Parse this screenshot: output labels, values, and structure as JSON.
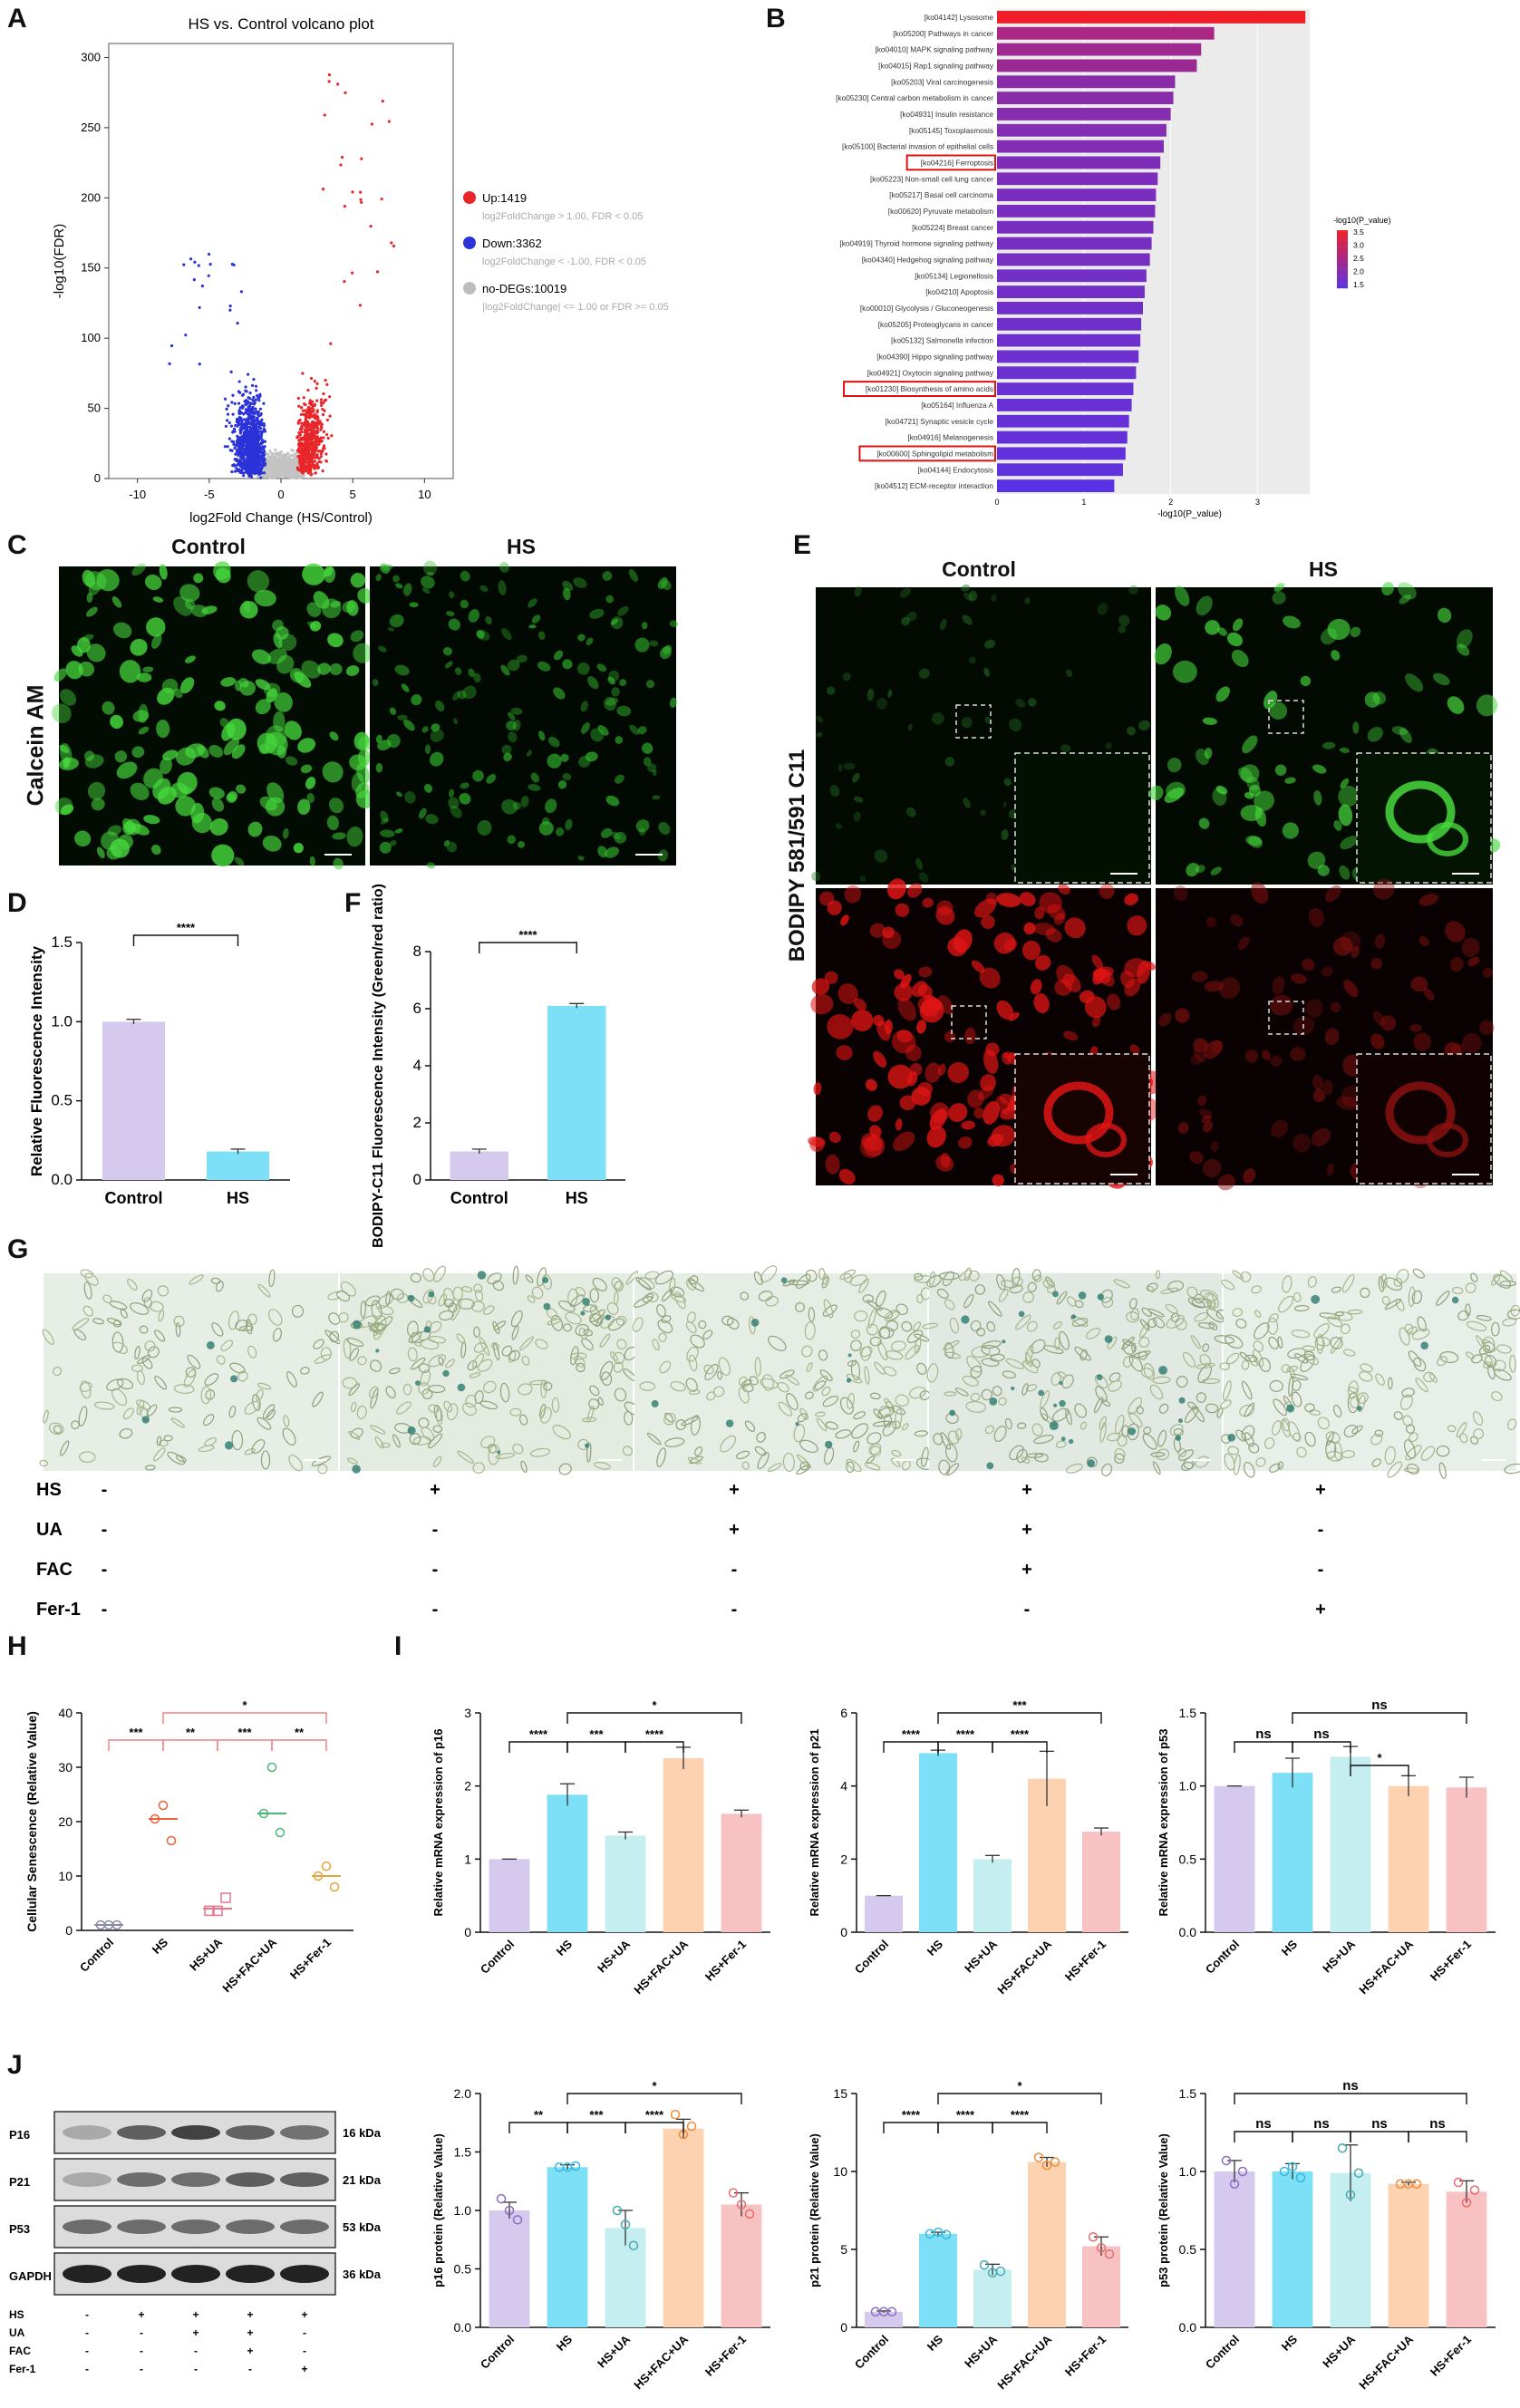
{
  "panel_letters": [
    "A",
    "B",
    "C",
    "D",
    "E",
    "F",
    "G",
    "H",
    "I",
    "J"
  ],
  "colors": {
    "up": "#e8262a",
    "down": "#2b32d8",
    "nodeg": "#c3c3c3",
    "lavender": "#d6c9ee",
    "cyan": "#7ee0f7",
    "teal": "#c4eef0",
    "peach": "#fdd2b1",
    "pink": "#f9c2c2",
    "fluor_green": "#46d83c",
    "fluor_red": "#e01414"
  },
  "volcano": {
    "title": "HS vs. Control volcano plot",
    "xlabel": "log2Fold Change (HS/Control)",
    "ylabel": "-log10(FDR)",
    "legend": [
      {
        "label": "Up:1419",
        "desc": "log2FoldChange > 1.00, FDR < 0.05",
        "color": "#e8262a"
      },
      {
        "label": "Down:3362",
        "desc": "log2FoldChange < -1.00, FDR < 0.05",
        "color": "#2b32d8"
      },
      {
        "label": "no-DEGs:10019",
        "desc": "|log2FoldChange| <= 1.00 or FDR >= 0.05",
        "color": "#bdbdbd"
      }
    ]
  },
  "chart_data": [
    {
      "type": "scatter",
      "id": "A",
      "title": "HS vs. Control volcano plot",
      "xlabel": "log2Fold Change (HS/Control)",
      "ylabel": "-log10(FDR)",
      "xlim": [
        -12,
        12
      ],
      "ylim": [
        0,
        310
      ],
      "xticks": [
        -10,
        -5,
        0,
        5,
        10
      ],
      "yticks": [
        0,
        50,
        100,
        150,
        200,
        250,
        300
      ],
      "series": [
        {
          "name": "Up:1419",
          "count": 1419
        },
        {
          "name": "Down:3362",
          "count": 3362
        },
        {
          "name": "no-DEGs:10019",
          "count": 10019
        }
      ]
    },
    {
      "type": "bar",
      "id": "B",
      "orientation": "horizontal",
      "xlabel": "-log10(P_value)",
      "xlim": [
        0,
        3.6
      ],
      "xticks": [
        0,
        1,
        2,
        3
      ],
      "legend_title": "-log10(P_value)",
      "legend_ticks": [
        "3.5",
        "3.0",
        "2.5",
        "2.0",
        "1.5"
      ],
      "categories": [
        "[ko04142] Lysosome",
        "[ko05200] Pathways in cancer",
        "[ko04010] MAPK signaling pathway",
        "[ko04015] Rap1 signaling pathway",
        "[ko05203] Viral carcinogenesis",
        "[ko05230] Central carbon metabolism in cancer",
        "[ko04931] Insulin resistance",
        "[ko05145] Toxoplasmosis",
        "[ko05100] Bacterial invasion of epithelial cells",
        "[ko04216] Ferroptosis",
        "[ko05223] Non-small cell lung cancer",
        "[ko05217] Basal cell carcinoma",
        "[ko00620] Pyruvate metabolism",
        "[ko05224] Breast cancer",
        "[ko04919] Thyroid hormone signaling pathway",
        "[ko04340] Hedgehog signaling pathway",
        "[ko05134] Legionellosis",
        "[ko04210] Apoptosis",
        "[ko00010] Glycolysis / Gluconeogenesis",
        "[ko05205] Proteoglycans in cancer",
        "[ko05132] Salmonella infection",
        "[ko04390] Hippo signaling pathway",
        "[ko04921] Oxytocin signaling pathway",
        "[ko01230] Biosynthesis of amino acids",
        "[ko05164] Influenza A",
        "[ko04721] Synaptic vesicle cycle",
        "[ko04916] Melanogenesis",
        "[ko00600] Sphingolipid metabolism",
        "[ko04144] Endocytosis",
        "[ko04512] ECM-receptor interaction"
      ],
      "values": [
        3.55,
        2.5,
        2.35,
        2.3,
        2.05,
        2.03,
        2.0,
        1.95,
        1.92,
        1.88,
        1.85,
        1.83,
        1.82,
        1.8,
        1.78,
        1.76,
        1.72,
        1.7,
        1.68,
        1.66,
        1.65,
        1.63,
        1.6,
        1.57,
        1.55,
        1.52,
        1.5,
        1.48,
        1.45,
        1.35
      ],
      "highlighted": [
        "[ko04216] Ferroptosis",
        "[ko01230] Biosynthesis of amino acids",
        "[ko00600] Sphingolipid metabolism"
      ]
    },
    {
      "type": "bar",
      "id": "D",
      "ylabel": "Relative Fluorescence Intensity",
      "ylim": [
        0,
        1.5
      ],
      "yticks": [
        0.0,
        0.5,
        1.0,
        1.5
      ],
      "categories": [
        "Control",
        "HS"
      ],
      "values": [
        1.0,
        0.18
      ],
      "sig": [
        {
          "from": 0,
          "to": 1,
          "label": "****"
        }
      ]
    },
    {
      "type": "bar",
      "id": "F",
      "ylabel": "BODIPY-C11 Fluorescence Intensity (Green/red ratio)",
      "ylim": [
        0,
        8
      ],
      "yticks": [
        0,
        2,
        4,
        6,
        8
      ],
      "categories": [
        "Control",
        "HS"
      ],
      "values": [
        1.0,
        6.1
      ],
      "sig": [
        {
          "from": 0,
          "to": 1,
          "label": "****"
        }
      ]
    },
    {
      "type": "scatter",
      "id": "H",
      "ylabel": "Cellular Senescence (Relative Value)",
      "ylim": [
        0,
        40
      ],
      "yticks": [
        0,
        10,
        20,
        30,
        40
      ],
      "categories": [
        "Control",
        "HS",
        "HS+UA",
        "HS+FAC+UA",
        "HS+Fer-1"
      ],
      "points": [
        [
          1,
          1,
          1
        ],
        [
          20.5,
          23,
          16.5
        ],
        [
          3.6,
          3.6,
          6
        ],
        [
          21.5,
          30,
          18
        ],
        [
          10,
          11.8,
          8
        ]
      ],
      "means": [
        1,
        20.5,
        4,
        21.5,
        10
      ],
      "sig": [
        {
          "from": 0,
          "to": 1,
          "label": "***"
        },
        {
          "from": 1,
          "to": 2,
          "label": "**"
        },
        {
          "from": 2,
          "to": 3,
          "label": "***"
        },
        {
          "from": 3,
          "to": 4,
          "label": "**"
        },
        {
          "from": 1,
          "to": 4,
          "label": "*"
        }
      ]
    },
    {
      "type": "bar",
      "id": "I-p16",
      "ylabel": "Relative mRNA expression of p16",
      "ylim": [
        0,
        3
      ],
      "yticks": [
        0,
        1,
        2,
        3
      ],
      "categories": [
        "Control",
        "HS",
        "HS+UA",
        "HS+FAC+UA",
        "HS+Fer-1"
      ],
      "values": [
        1.0,
        1.88,
        1.32,
        2.38,
        1.62
      ],
      "errors": [
        0,
        0.15,
        0.05,
        0.15,
        0.05
      ],
      "sig": [
        {
          "from": 0,
          "to": 1,
          "label": "****"
        },
        {
          "from": 1,
          "to": 2,
          "label": "***"
        },
        {
          "from": 2,
          "to": 3,
          "label": "****"
        },
        {
          "from": 1,
          "to": 4,
          "label": "*"
        }
      ]
    },
    {
      "type": "bar",
      "id": "I-p21",
      "ylabel": "Relative mRNA expression of p21",
      "ylim": [
        0,
        6
      ],
      "yticks": [
        0,
        2,
        4,
        6
      ],
      "categories": [
        "Control",
        "HS",
        "HS+UA",
        "HS+FAC+UA",
        "HS+Fer-1"
      ],
      "values": [
        1.0,
        4.9,
        2.0,
        4.2,
        2.75
      ],
      "errors": [
        0,
        0.08,
        0.1,
        0.75,
        0.1
      ],
      "sig": [
        {
          "from": 0,
          "to": 1,
          "label": "****"
        },
        {
          "from": 1,
          "to": 2,
          "label": "****"
        },
        {
          "from": 2,
          "to": 3,
          "label": "****"
        },
        {
          "from": 1,
          "to": 4,
          "label": "***"
        }
      ]
    },
    {
      "type": "bar",
      "id": "I-p53",
      "ylabel": "Relative mRNA expression of p53",
      "ylim": [
        0,
        1.5
      ],
      "yticks": [
        0.0,
        0.5,
        1.0,
        1.5
      ],
      "categories": [
        "Control",
        "HS",
        "HS+UA",
        "HS+FAC+UA",
        "HS+Fer-1"
      ],
      "values": [
        1.0,
        1.09,
        1.2,
        1.0,
        0.99
      ],
      "errors": [
        0,
        0.1,
        0.07,
        0.07,
        0.07
      ],
      "sig": [
        {
          "from": 0,
          "to": 1,
          "label": "ns"
        },
        {
          "from": 1,
          "to": 2,
          "label": "ns"
        },
        {
          "from": 2,
          "to": 3,
          "label": "*"
        },
        {
          "from": 1,
          "to": 4,
          "label": "ns"
        }
      ]
    },
    {
      "type": "bar",
      "id": "J-p16",
      "ylabel": "p16 protein (Relative Value)",
      "ylim": [
        0,
        2.0
      ],
      "yticks": [
        0.0,
        0.5,
        1.0,
        1.5,
        2.0
      ],
      "categories": [
        "Control",
        "HS",
        "HS+UA",
        "HS+FAC+UA",
        "HS+Fer-1"
      ],
      "values": [
        1.0,
        1.37,
        0.85,
        1.7,
        1.05
      ],
      "errors": [
        0.07,
        0.02,
        0.15,
        0.08,
        0.1
      ],
      "points": [
        [
          1.1,
          1.0,
          0.92
        ],
        [
          1.37,
          1.37,
          1.38
        ],
        [
          1.0,
          0.88,
          0.7
        ],
        [
          1.82,
          1.65,
          1.72
        ],
        [
          1.15,
          1.05,
          0.97
        ]
      ],
      "sig": [
        {
          "from": 0,
          "to": 1,
          "label": "**"
        },
        {
          "from": 1,
          "to": 2,
          "label": "***"
        },
        {
          "from": 2,
          "to": 3,
          "label": "****"
        },
        {
          "from": 1,
          "to": 4,
          "label": "*"
        }
      ]
    },
    {
      "type": "bar",
      "id": "J-p21",
      "ylabel": "p21 protein (Relative Value)",
      "ylim": [
        0,
        15
      ],
      "yticks": [
        0,
        5,
        10,
        15
      ],
      "categories": [
        "Control",
        "HS",
        "HS+UA",
        "HS+FAC+UA",
        "HS+Fer-1"
      ],
      "values": [
        1.0,
        6.0,
        3.7,
        10.6,
        5.2
      ],
      "errors": [
        0.05,
        0.1,
        0.35,
        0.3,
        0.6
      ],
      "points": [
        [
          1,
          1,
          1
        ],
        [
          6,
          6.1,
          5.95
        ],
        [
          4.0,
          3.5,
          3.6
        ],
        [
          10.9,
          10.4,
          10.6
        ],
        [
          5.8,
          5.1,
          4.7
        ]
      ],
      "sig": [
        {
          "from": 0,
          "to": 1,
          "label": "****"
        },
        {
          "from": 1,
          "to": 2,
          "label": "****"
        },
        {
          "from": 2,
          "to": 3,
          "label": "****"
        },
        {
          "from": 1,
          "to": 4,
          "label": "*"
        }
      ]
    },
    {
      "type": "bar",
      "id": "J-p53",
      "ylabel": "p53 protein (Relative Value)",
      "ylim": [
        0,
        1.5
      ],
      "yticks": [
        0.0,
        0.5,
        1.0,
        1.5
      ],
      "categories": [
        "Control",
        "HS",
        "HS+UA",
        "HS+FAC+UA",
        "HS+Fer-1"
      ],
      "values": [
        1.0,
        1.0,
        0.99,
        0.92,
        0.87
      ],
      "errors": [
        0.07,
        0.05,
        0.18,
        0.01,
        0.07
      ],
      "points": [
        [
          1.07,
          0.92,
          1.0
        ],
        [
          1.0,
          1.03,
          0.96
        ],
        [
          1.15,
          0.85,
          0.99
        ],
        [
          0.92,
          0.92,
          0.92
        ],
        [
          0.93,
          0.8,
          0.88
        ]
      ],
      "sig": [
        {
          "from": 0,
          "to": 1,
          "label": "ns"
        },
        {
          "from": 1,
          "to": 2,
          "label": "ns"
        },
        {
          "from": 2,
          "to": 3,
          "label": "ns"
        },
        {
          "from": 3,
          "to": 4,
          "label": "ns"
        },
        {
          "from": 0,
          "to": 4,
          "label": "ns"
        }
      ]
    }
  ],
  "panel_c": {
    "left": "Control",
    "right": "HS",
    "row_label": "Calcein AM"
  },
  "panel_e": {
    "left": "Control",
    "right": "HS",
    "row_label": "BODIPY 581/591 C11"
  },
  "panel_g": {
    "rows": [
      {
        "label": "HS",
        "values": [
          "-",
          "+",
          "+",
          "+",
          "+"
        ]
      },
      {
        "label": "UA",
        "values": [
          "-",
          "-",
          "+",
          "+",
          "-"
        ]
      },
      {
        "label": "FAC",
        "values": [
          "-",
          "-",
          "-",
          "+",
          "-"
        ]
      },
      {
        "label": "Fer-1",
        "values": [
          "-",
          "-",
          "-",
          "-",
          "+"
        ]
      }
    ]
  },
  "panel_j_blot": {
    "bands": [
      {
        "label": "P16",
        "kda": "16 kDa"
      },
      {
        "label": "P21",
        "kda": "21 kDa"
      },
      {
        "label": "P53",
        "kda": "53 kDa"
      },
      {
        "label": "GAPDH",
        "kda": "36 kDa"
      }
    ],
    "rows": [
      {
        "label": "HS",
        "values": [
          "-",
          "+",
          "+",
          "+",
          "+"
        ]
      },
      {
        "label": "UA",
        "values": [
          "-",
          "-",
          "+",
          "+",
          "-"
        ]
      },
      {
        "label": "FAC",
        "values": [
          "-",
          "-",
          "-",
          "+",
          "-"
        ]
      },
      {
        "label": "Fer-1",
        "values": [
          "-",
          "-",
          "-",
          "-",
          "+"
        ]
      }
    ]
  }
}
